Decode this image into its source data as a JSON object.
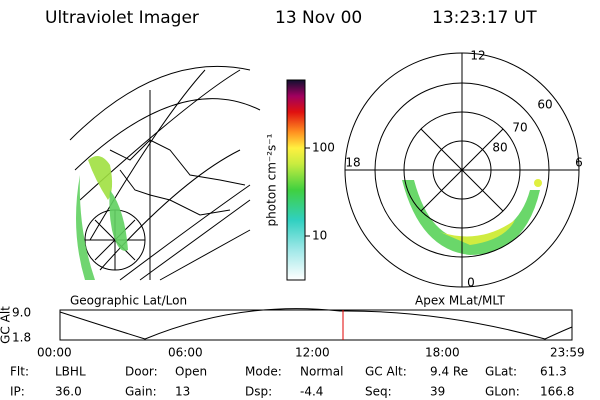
{
  "header": {
    "title": "Ultraviolet Imager",
    "date": "13 Nov 00",
    "time": "13:23:17 UT"
  },
  "colorbar": {
    "label": "photon cm⁻²s⁻¹",
    "ticks": [
      "100",
      "10"
    ]
  },
  "left_panel": {
    "label": "Geographic Lat/Lon"
  },
  "right_panel": {
    "label": "Apex MLat/MLT",
    "mlt_labels": [
      "12",
      "18",
      "6",
      "0"
    ],
    "lat_labels": [
      "60",
      "70",
      "80"
    ]
  },
  "timeline": {
    "y_label": "GC Alt",
    "y_ticks": [
      "9.0",
      "1.8"
    ],
    "x_ticks": [
      "00:00",
      "06:00",
      "12:00",
      "18:00",
      "23:59"
    ]
  },
  "info": {
    "rows": [
      [
        {
          "label": "Flt:",
          "value": "LBHL"
        },
        {
          "label": "Door:",
          "value": "Open"
        },
        {
          "label": "Mode:",
          "value": "Normal"
        },
        {
          "label": "GC Alt:",
          "value": "9.4 Re"
        },
        {
          "label": "GLat:",
          "value": "61.3"
        }
      ],
      [
        {
          "label": "IP:",
          "value": "36.0"
        },
        {
          "label": "Gain:",
          "value": "13"
        },
        {
          "label": "Dsp:",
          "value": "-4.4"
        },
        {
          "label": "Seq:",
          "value": "39"
        },
        {
          "label": "GLon:",
          "value": "166.8"
        }
      ]
    ]
  }
}
